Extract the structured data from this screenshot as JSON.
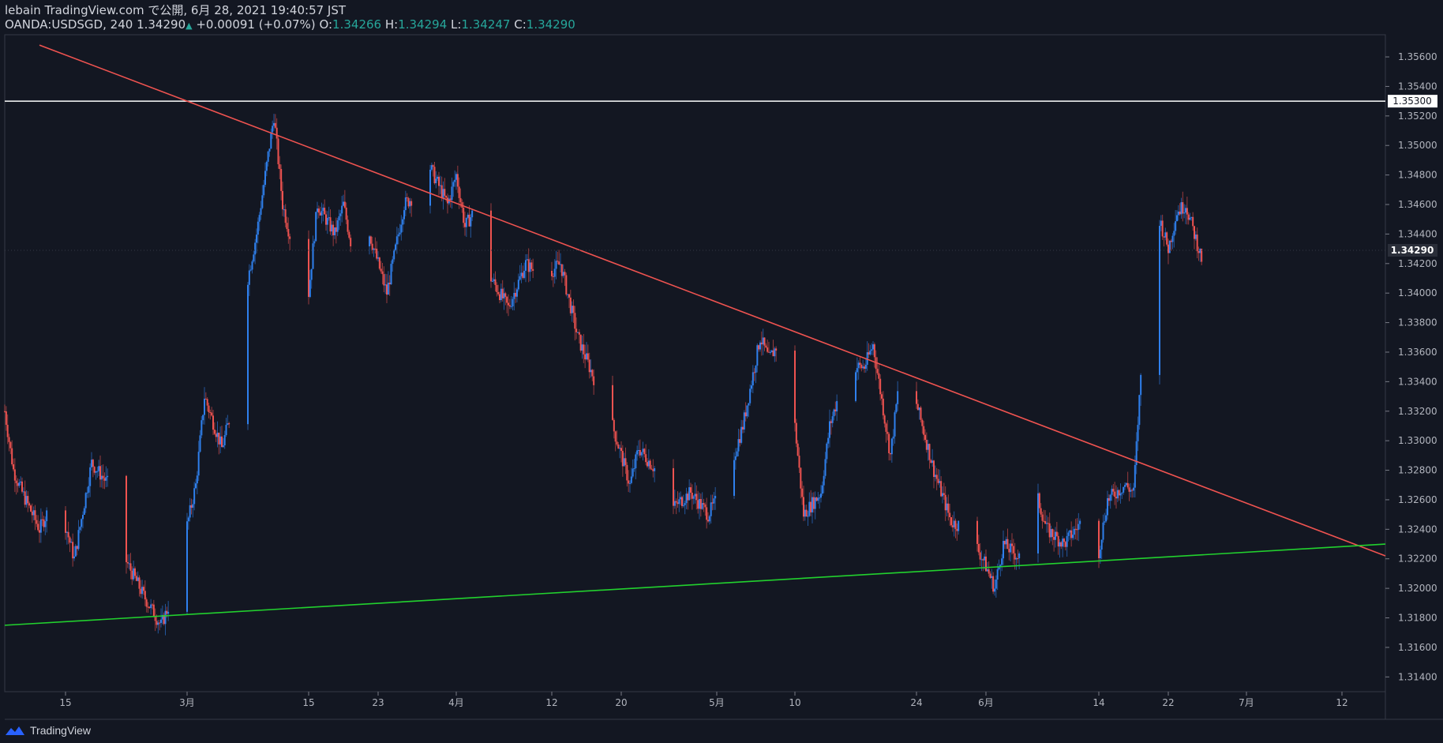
{
  "header": {
    "published_line": "lebain TradingView.com で公開, 6月 28, 2021 19:40:57 JST",
    "symbol": "OANDA:USDSGD",
    "interval": "240",
    "last": "1.34290",
    "change": "+0.00091 (+0.07%)",
    "o_label": "O:",
    "o_val": "1.34266",
    "h_label": "H:",
    "h_val": "1.34294",
    "l_label": "L:",
    "l_val": "1.34247",
    "c_label": "C:",
    "c_val": "1.34290"
  },
  "footer": {
    "brand": "TradingView",
    "logo_icon": "tradingview-logo-icon"
  },
  "colors": {
    "background": "#131722",
    "up": "#2f80ed",
    "down": "#ef5350",
    "resistance": "#ef5350",
    "support": "#22d12e",
    "level": "#ffffff"
  },
  "chart_data": {
    "type": "candlestick",
    "symbol": "OANDA:USDSGD",
    "interval": "240",
    "ylim": [
      1.313,
      1.3575
    ],
    "y_ticks": [
      "1.35600",
      "1.35400",
      "1.35200",
      "1.35000",
      "1.34800",
      "1.34600",
      "1.34400",
      "1.34200",
      "1.34000",
      "1.33800",
      "1.33600",
      "1.33400",
      "1.33200",
      "1.33000",
      "1.32800",
      "1.32600",
      "1.32400",
      "1.32200",
      "1.32000",
      "1.31800",
      "1.31600",
      "1.31400"
    ],
    "x_ticks": [
      "15",
      "3月",
      "15",
      "23",
      "4月",
      "12",
      "20",
      "5月",
      "10",
      "24",
      "6月",
      "14",
      "22",
      "7月",
      "12"
    ],
    "x_tick_dates": [
      "2021-02-15",
      "2021-03-01",
      "2021-03-15",
      "2021-03-23",
      "2021-04-01",
      "2021-04-12",
      "2021-04-20",
      "2021-05-01",
      "2021-05-10",
      "2021-05-24",
      "2021-06-01",
      "2021-06-14",
      "2021-06-22",
      "2021-07-01",
      "2021-07-12"
    ],
    "price_labels": {
      "level": "1.35300",
      "last": "1.34290"
    },
    "horizontal_level": 1.353,
    "trendlines": [
      {
        "name": "resistance",
        "from": [
          "2021-02-12",
          1.3568
        ],
        "to": [
          "2021-07-17",
          1.3222
        ]
      },
      {
        "name": "support",
        "from": [
          "2021-02-08",
          1.3175
        ],
        "to": [
          "2021-07-17",
          1.323
        ]
      }
    ],
    "close_path": [
      [
        "2021-02-08",
        1.332
      ],
      [
        "2021-02-09",
        1.328
      ],
      [
        "2021-02-10",
        1.3265
      ],
      [
        "2021-02-12",
        1.324
      ],
      [
        "2021-02-14",
        1.3265
      ],
      [
        "2021-02-16",
        1.322
      ],
      [
        "2021-02-18",
        1.3285
      ],
      [
        "2021-02-20",
        1.327
      ],
      [
        "2021-02-21",
        1.323
      ],
      [
        "2021-02-24",
        1.3195
      ],
      [
        "2021-02-26",
        1.3175
      ],
      [
        "2021-02-27",
        1.319
      ],
      [
        "2021-02-28",
        1.3215
      ],
      [
        "2021-03-02",
        1.327
      ],
      [
        "2021-03-03",
        1.333
      ],
      [
        "2021-03-05",
        1.3295
      ],
      [
        "2021-03-07",
        1.334
      ],
      [
        "2021-03-08",
        1.341
      ],
      [
        "2021-03-09",
        1.344
      ],
      [
        "2021-03-10",
        1.348
      ],
      [
        "2021-03-11",
        1.352
      ],
      [
        "2021-03-12",
        1.346
      ],
      [
        "2021-03-14",
        1.341
      ],
      [
        "2021-03-15",
        1.34
      ],
      [
        "2021-03-16",
        1.346
      ],
      [
        "2021-03-18",
        1.344
      ],
      [
        "2021-03-19",
        1.346
      ],
      [
        "2021-03-21",
        1.34
      ],
      [
        "2021-03-22",
        1.344
      ],
      [
        "2021-03-24",
        1.34
      ],
      [
        "2021-03-26",
        1.346
      ],
      [
        "2021-03-28",
        1.347
      ],
      [
        "2021-03-29",
        1.3485
      ],
      [
        "2021-03-31",
        1.346
      ],
      [
        "2021-04-01",
        1.348
      ],
      [
        "2021-04-02",
        1.3445
      ],
      [
        "2021-04-03",
        1.3455
      ],
      [
        "2021-04-05",
        1.341
      ],
      [
        "2021-04-07",
        1.339
      ],
      [
        "2021-04-09",
        1.342
      ],
      [
        "2021-04-11",
        1.341
      ],
      [
        "2021-04-13",
        1.342
      ],
      [
        "2021-04-15",
        1.337
      ],
      [
        "2021-04-17",
        1.334
      ],
      [
        "2021-04-19",
        1.331
      ],
      [
        "2021-04-21",
        1.327
      ],
      [
        "2021-04-22",
        1.3295
      ],
      [
        "2021-04-24",
        1.328
      ],
      [
        "2021-04-26",
        1.3255
      ],
      [
        "2021-04-28",
        1.3265
      ],
      [
        "2021-04-30",
        1.325
      ],
      [
        "2021-05-02",
        1.327
      ],
      [
        "2021-05-04",
        1.331
      ],
      [
        "2021-05-06",
        1.337
      ],
      [
        "2021-05-07",
        1.3355
      ],
      [
        "2021-05-08",
        1.3365
      ],
      [
        "2021-05-10",
        1.331
      ],
      [
        "2021-05-11",
        1.325
      ],
      [
        "2021-05-13",
        1.3265
      ],
      [
        "2021-05-14",
        1.331
      ],
      [
        "2021-05-16",
        1.335
      ],
      [
        "2021-05-18",
        1.335
      ],
      [
        "2021-05-19",
        1.3365
      ],
      [
        "2021-05-21",
        1.329
      ],
      [
        "2021-05-22",
        1.334
      ],
      [
        "2021-05-24",
        1.3325
      ],
      [
        "2021-05-26",
        1.328
      ],
      [
        "2021-05-28",
        1.3245
      ],
      [
        "2021-05-30",
        1.324
      ],
      [
        "2021-06-01",
        1.3215
      ],
      [
        "2021-06-02",
        1.32
      ],
      [
        "2021-06-03",
        1.323
      ],
      [
        "2021-06-05",
        1.322
      ],
      [
        "2021-06-06",
        1.328
      ],
      [
        "2021-06-08",
        1.324
      ],
      [
        "2021-06-10",
        1.323
      ],
      [
        "2021-06-12",
        1.3245
      ],
      [
        "2021-06-14",
        1.3225
      ],
      [
        "2021-06-15",
        1.326
      ],
      [
        "2021-06-17",
        1.327
      ],
      [
        "2021-06-18",
        1.3265
      ],
      [
        "2021-06-19",
        1.336
      ],
      [
        "2021-06-20",
        1.3425
      ],
      [
        "2021-06-21",
        1.345
      ],
      [
        "2021-06-22",
        1.343
      ],
      [
        "2021-06-23",
        1.3455
      ],
      [
        "2021-06-24",
        1.346
      ],
      [
        "2021-06-25",
        1.344
      ],
      [
        "2021-06-26",
        1.342
      ],
      [
        "2021-06-27",
        1.342
      ],
      [
        "2021-06-28",
        1.3429
      ]
    ]
  }
}
